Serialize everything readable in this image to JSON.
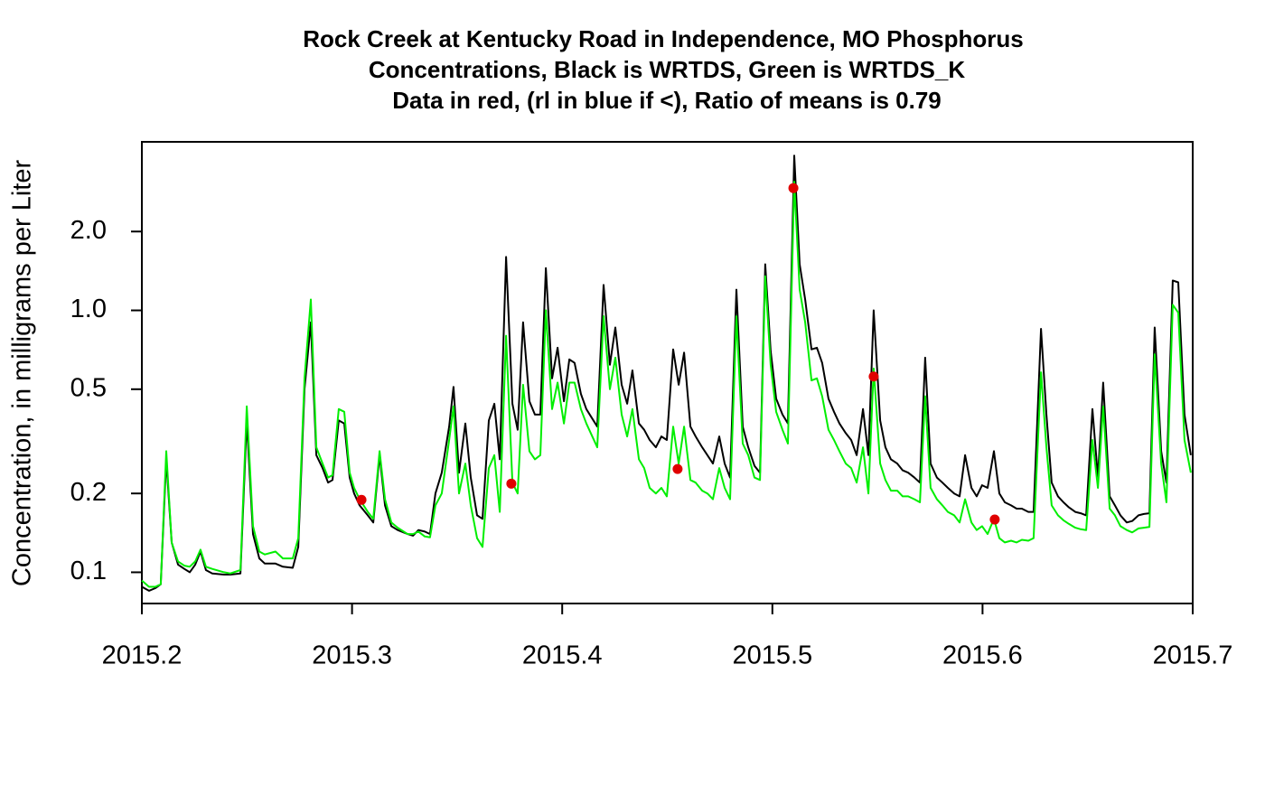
{
  "chart_data": {
    "type": "line",
    "title": [
      "Rock Creek at Kentucky Road in Independence, MO Phosphorus",
      "Concentrations, Black is WRTDS, Green is WRTDS_K",
      "Data in red, (rl in blue if <), Ratio of means is 0.79"
    ],
    "y_label": "Concentration, in milligrams per Liter",
    "xlim": [
      2015.2,
      2015.7
    ],
    "xticks": [
      2015.2,
      2015.3,
      2015.4,
      2015.5,
      2015.6,
      2015.7
    ],
    "ylim": [
      0.076,
      4.4
    ],
    "ylog": true,
    "yticks": [
      {
        "value": 2,
        "label": "2.0"
      },
      {
        "value": 1,
        "label": "1.0"
      },
      0.5,
      0.2,
      0.1
    ],
    "x": [
      2015.2,
      2015.2034,
      2015.2064,
      2015.209,
      2015.2116,
      2015.2142,
      2015.2172,
      2015.2202,
      2015.2228,
      2015.2254,
      2015.2279,
      2015.2305,
      2015.2335,
      2015.2391,
      2015.2421,
      2015.2469,
      2015.2499,
      2015.2529,
      2015.2559,
      2015.2585,
      2015.2636,
      2015.2671,
      2015.2718,
      2015.2744,
      2015.2774,
      2015.2804,
      2015.283,
      2015.286,
      2015.2886,
      2015.2907,
      2015.2937,
      2015.2963,
      2015.2989,
      2015.301,
      2015.3036,
      2015.3075,
      2015.3101,
      2015.3131,
      2015.3157,
      2015.3187,
      2015.3217,
      2015.3264,
      2015.329,
      2015.3316,
      2015.3346,
      2015.3371,
      2015.3397,
      2015.3427,
      2015.3462,
      2015.3483,
      2015.3509,
      2015.3539,
      2015.3565,
      2015.3595,
      2015.3621,
      2015.3651,
      2015.3677,
      2015.3703,
      2015.3733,
      2015.3763,
      2015.3788,
      2015.3814,
      2015.3844,
      2015.387,
      2015.3896,
      2015.3922,
      2015.3952,
      2015.3978,
      2015.4008,
      2015.4034,
      2015.4059,
      2015.4089,
      2015.4115,
      2015.4167,
      2015.4197,
      2015.4227,
      2015.4253,
      2015.4283,
      2015.4309,
      2015.4334,
      2015.4365,
      2015.439,
      2015.4416,
      2015.4446,
      2015.4472,
      2015.4498,
      2015.4528,
      2015.4554,
      2015.458,
      2015.461,
      2015.4635,
      2015.4666,
      2015.4691,
      2015.4717,
      2015.4747,
      2015.4773,
      2015.4799,
      2015.4829,
      2015.4859,
      2015.4885,
      2015.4915,
      2015.4941,
      2015.4966,
      2015.4992,
      2015.5018,
      2015.5048,
      2015.5074,
      2015.5104,
      2015.513,
      2015.5156,
      2015.5186,
      2015.5212,
      2015.5237,
      2015.5267,
      2015.5293,
      2015.5319,
      2015.5349,
      2015.5375,
      2015.5401,
      2015.5431,
      2015.5457,
      2015.5482,
      2015.5513,
      2015.5538,
      2015.5564,
      2015.5594,
      2015.562,
      2015.5646,
      2015.5676,
      2015.5702,
      2015.5727,
      2015.5753,
      2015.5783,
      2015.5809,
      2015.5835,
      2015.5865,
      2015.5891,
      2015.5917,
      2015.5947,
      2015.5972,
      2015.5998,
      2015.6024,
      2015.6054,
      2015.608,
      2015.6106,
      2015.6136,
      2015.6162,
      2015.6187,
      2015.6218,
      2015.6243,
      2015.6278,
      2015.6304,
      2015.6329,
      2015.6359,
      2015.6385,
      2015.6411,
      2015.6441,
      2015.6467,
      2015.6493,
      2015.6523,
      2015.6549,
      2015.6574,
      2015.6605,
      2015.663,
      2015.6656,
      2015.6686,
      2015.6712,
      2015.6742,
      2015.6768,
      2015.6794,
      2015.6819,
      2015.685,
      2015.6875,
      2015.6905,
      2015.6931,
      2015.6961,
      2015.6991
    ],
    "series": [
      {
        "color": "#000000",
        "values": [
          0.088,
          0.085,
          0.087,
          0.09,
          0.27,
          0.13,
          0.107,
          0.103,
          0.1,
          0.107,
          0.12,
          0.102,
          0.099,
          0.098,
          0.098,
          0.099,
          0.38,
          0.14,
          0.113,
          0.108,
          0.108,
          0.105,
          0.104,
          0.125,
          0.5,
          0.9,
          0.28,
          0.25,
          0.22,
          0.225,
          0.38,
          0.37,
          0.23,
          0.2,
          0.18,
          0.165,
          0.155,
          0.28,
          0.18,
          0.15,
          0.145,
          0.14,
          0.138,
          0.145,
          0.143,
          0.14,
          0.2,
          0.24,
          0.36,
          0.51,
          0.24,
          0.37,
          0.23,
          0.165,
          0.16,
          0.38,
          0.44,
          0.27,
          1.6,
          0.44,
          0.35,
          0.9,
          0.45,
          0.4,
          0.4,
          1.45,
          0.55,
          0.72,
          0.45,
          0.65,
          0.63,
          0.48,
          0.42,
          0.36,
          1.25,
          0.62,
          0.86,
          0.52,
          0.44,
          0.59,
          0.37,
          0.35,
          0.32,
          0.3,
          0.33,
          0.32,
          0.71,
          0.52,
          0.69,
          0.36,
          0.33,
          0.3,
          0.28,
          0.26,
          0.33,
          0.26,
          0.23,
          1.2,
          0.36,
          0.3,
          0.255,
          0.24,
          1.5,
          0.7,
          0.46,
          0.4,
          0.37,
          3.9,
          1.5,
          1.1,
          0.71,
          0.72,
          0.63,
          0.46,
          0.41,
          0.37,
          0.34,
          0.32,
          0.28,
          0.42,
          0.28,
          1.0,
          0.38,
          0.3,
          0.27,
          0.26,
          0.245,
          0.24,
          0.23,
          0.22,
          0.66,
          0.26,
          0.23,
          0.22,
          0.21,
          0.2,
          0.195,
          0.28,
          0.21,
          0.195,
          0.215,
          0.21,
          0.29,
          0.2,
          0.185,
          0.18,
          0.175,
          0.175,
          0.17,
          0.17,
          0.85,
          0.4,
          0.22,
          0.195,
          0.185,
          0.177,
          0.17,
          0.168,
          0.165,
          0.42,
          0.23,
          0.53,
          0.195,
          0.18,
          0.165,
          0.155,
          0.157,
          0.165,
          0.167,
          0.168,
          0.86,
          0.29,
          0.22,
          1.3,
          1.28,
          0.4,
          0.28
        ]
      },
      {
        "color": "#00ee00",
        "values": [
          0.093,
          0.088,
          0.088,
          0.09,
          0.29,
          0.13,
          0.11,
          0.106,
          0.105,
          0.11,
          0.122,
          0.105,
          0.103,
          0.1,
          0.099,
          0.102,
          0.43,
          0.15,
          0.12,
          0.117,
          0.12,
          0.113,
          0.113,
          0.135,
          0.55,
          1.1,
          0.3,
          0.26,
          0.23,
          0.235,
          0.42,
          0.41,
          0.24,
          0.21,
          0.19,
          0.17,
          0.16,
          0.29,
          0.19,
          0.155,
          0.148,
          0.14,
          0.14,
          0.143,
          0.137,
          0.136,
          0.18,
          0.2,
          0.32,
          0.43,
          0.2,
          0.26,
          0.18,
          0.135,
          0.125,
          0.25,
          0.28,
          0.17,
          0.8,
          0.22,
          0.2,
          0.52,
          0.29,
          0.27,
          0.28,
          1.0,
          0.42,
          0.53,
          0.37,
          0.53,
          0.53,
          0.42,
          0.37,
          0.3,
          0.95,
          0.5,
          0.66,
          0.4,
          0.33,
          0.42,
          0.27,
          0.25,
          0.21,
          0.2,
          0.21,
          0.195,
          0.36,
          0.26,
          0.36,
          0.225,
          0.22,
          0.205,
          0.2,
          0.19,
          0.25,
          0.21,
          0.19,
          0.95,
          0.31,
          0.28,
          0.23,
          0.225,
          1.35,
          0.62,
          0.41,
          0.35,
          0.31,
          3.1,
          1.2,
          0.9,
          0.54,
          0.55,
          0.47,
          0.35,
          0.32,
          0.29,
          0.26,
          0.25,
          0.22,
          0.3,
          0.2,
          0.6,
          0.26,
          0.225,
          0.205,
          0.205,
          0.195,
          0.195,
          0.19,
          0.185,
          0.47,
          0.21,
          0.19,
          0.18,
          0.17,
          0.165,
          0.155,
          0.19,
          0.155,
          0.145,
          0.15,
          0.14,
          0.16,
          0.135,
          0.13,
          0.132,
          0.13,
          0.133,
          0.132,
          0.135,
          0.58,
          0.3,
          0.18,
          0.165,
          0.158,
          0.153,
          0.148,
          0.146,
          0.145,
          0.32,
          0.21,
          0.43,
          0.175,
          0.165,
          0.15,
          0.145,
          0.142,
          0.147,
          0.148,
          0.149,
          0.68,
          0.26,
          0.185,
          1.05,
          0.98,
          0.32,
          0.24
        ]
      },
      {
        "type": "points",
        "color": "#e00000",
        "x": [
          2015.3045,
          2015.3758,
          2015.4549,
          2015.51,
          2015.5482,
          2015.6058
        ],
        "values": [
          0.189,
          0.218,
          0.248,
          2.93,
          0.559,
          0.159
        ]
      }
    ]
  }
}
